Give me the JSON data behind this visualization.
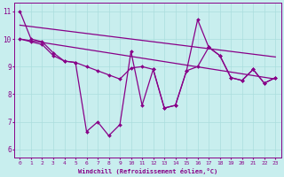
{
  "bg_color": "#c8eeee",
  "line_color": "#880088",
  "grid_color": "#aadddd",
  "xlabel": "Windchill (Refroidissement éolien,°C)",
  "xlim_min": -0.5,
  "xlim_max": 23.5,
  "ylim_min": 5.7,
  "ylim_max": 11.3,
  "yticks": [
    6,
    7,
    8,
    9,
    10,
    11
  ],
  "xticks": [
    0,
    1,
    2,
    3,
    4,
    5,
    6,
    7,
    8,
    9,
    10,
    11,
    12,
    13,
    14,
    15,
    16,
    17,
    18,
    19,
    20,
    21,
    22,
    23
  ],
  "series": [
    {
      "x": [
        0,
        1,
        2,
        3,
        4,
        5,
        6,
        7,
        8,
        9,
        10,
        11,
        12,
        13,
        14,
        15,
        16,
        17,
        18,
        19,
        20,
        21,
        22,
        23
      ],
      "y": [
        11.0,
        10.0,
        9.9,
        9.5,
        9.2,
        9.15,
        6.65,
        7.0,
        6.5,
        6.9,
        9.55,
        7.6,
        8.9,
        7.5,
        7.6,
        8.85,
        10.7,
        9.7,
        9.4,
        8.6,
        8.5,
        8.9,
        8.4,
        8.6
      ],
      "marker": true,
      "lw": 0.9
    },
    {
      "x": [
        0,
        1,
        2,
        3,
        4,
        5,
        6,
        7,
        8,
        9,
        10,
        11,
        12,
        13,
        14,
        15,
        16,
        17,
        18,
        19,
        20,
        21,
        22,
        23
      ],
      "y": [
        10.0,
        9.9,
        9.8,
        9.4,
        9.2,
        9.15,
        9.0,
        8.85,
        8.7,
        8.55,
        8.95,
        9.0,
        8.9,
        7.5,
        7.6,
        8.85,
        9.0,
        9.7,
        9.4,
        8.6,
        8.5,
        8.9,
        8.4,
        8.6
      ],
      "marker": true,
      "lw": 0.9
    },
    {
      "x": [
        0,
        23
      ],
      "y": [
        10.5,
        9.35
      ],
      "marker": false,
      "lw": 0.9
    },
    {
      "x": [
        0,
        23
      ],
      "y": [
        10.0,
        8.55
      ],
      "marker": false,
      "lw": 0.9
    }
  ]
}
